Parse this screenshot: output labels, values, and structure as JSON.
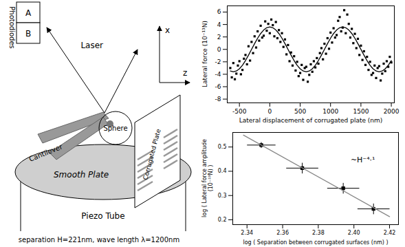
{
  "diagram": {
    "photodiodes": {
      "label": "Photodiodes",
      "cells": [
        "A",
        "B"
      ]
    },
    "labels": {
      "laser": "Laser",
      "x_axis": "x",
      "z_axis": "z",
      "cantilever": "Cantilever",
      "sphere": "Sphere",
      "corrugated_plate": "Corrugated Plate",
      "smooth_plate": "Smooth Plate",
      "piezo_tube": "Piezo Tube"
    },
    "caption": "separation H=221nm, wave length λ=1200nm"
  },
  "chart_data": [
    {
      "type": "scatter",
      "x_label": "Lateral displacement of corrugated plate (nm)",
      "y_label": "Lateral force (10⁻¹³N)",
      "xlim": [
        -700,
        2050
      ],
      "xticks": [
        -500,
        0,
        500,
        1000,
        1500,
        2000
      ],
      "ylim": [
        -8.6,
        7
      ],
      "yticks": [
        -8,
        -6,
        -4,
        -2,
        0,
        2,
        4,
        6
      ],
      "series": [
        {
          "type": "scatter",
          "marker": "square",
          "color": "#000000",
          "x": [
            -650,
            -625,
            -600,
            -575,
            -550,
            -525,
            -500,
            -475,
            -450,
            -425,
            -400,
            -375,
            -350,
            -325,
            -300,
            -275,
            -250,
            -225,
            -200,
            -175,
            -150,
            -125,
            -100,
            -75,
            -50,
            -25,
            0,
            25,
            50,
            75,
            100,
            125,
            150,
            175,
            200,
            225,
            250,
            275,
            300,
            325,
            350,
            375,
            400,
            425,
            450,
            475,
            500,
            525,
            550,
            575,
            600,
            625,
            650,
            675,
            700,
            725,
            750,
            775,
            800,
            825,
            850,
            875,
            900,
            925,
            950,
            975,
            1000,
            1025,
            1050,
            1075,
            1100,
            1125,
            1150,
            1175,
            1200,
            1225,
            1250,
            1275,
            1300,
            1325,
            1350,
            1375,
            1400,
            1425,
            1450,
            1475,
            1500,
            1525,
            1550,
            1575,
            1600,
            1625,
            1650,
            1675,
            1700,
            1725,
            1750,
            1775,
            1800,
            1825,
            1850,
            1875,
            1900,
            1925,
            1950,
            1975,
            2000
          ],
          "values": [
            -3.0,
            -4.5,
            -2.2,
            -4.8,
            -3.9,
            -2.6,
            -1.9,
            -4.0,
            -3.3,
            -1.5,
            -0.9,
            -2.4,
            0.5,
            -1.8,
            1.2,
            -0.6,
            2.1,
            0.3,
            2.9,
            1.4,
            3.8,
            1.9,
            2.2,
            4.5,
            3.0,
            4.1,
            2.6,
            4.8,
            3.9,
            2.1,
            4.4,
            1.8,
            3.1,
            1.2,
            2.6,
            0.4,
            1.6,
            -0.8,
            0.7,
            -1.9,
            -0.5,
            -2.6,
            -1.1,
            -3.4,
            -2.0,
            -4.3,
            -3.8,
            -2.5,
            -4.9,
            -3.0,
            -2.8,
            -5.2,
            -4.1,
            -2.4,
            -3.6,
            -1.9,
            -2.9,
            -1.4,
            -2.3,
            -0.6,
            0.2,
            -1.6,
            0.9,
            -0.7,
            1.8,
            0.1,
            2.7,
            1.1,
            3.4,
            1.9,
            2.3,
            4.6,
            5.2,
            2.9,
            3.5,
            6.3,
            2.6,
            5.6,
            4.1,
            1.9,
            3.3,
            1.0,
            2.5,
            0.2,
            1.7,
            -0.9,
            0.6,
            -1.7,
            -0.3,
            -2.5,
            -1.2,
            -3.3,
            -2.0,
            -4.1,
            -3.8,
            -2.6,
            -4.6,
            -3.0,
            -2.7,
            -5.0,
            -3.9,
            -2.3,
            -3.5,
            -1.9,
            -2.8,
            -1.2,
            -2.1
          ]
        },
        {
          "type": "line",
          "line_style": "solid",
          "color": "#000000",
          "x": [
            -650,
            -600,
            -550,
            -500,
            -450,
            -400,
            -350,
            -300,
            -250,
            -200,
            -150,
            -100,
            -50,
            0,
            50,
            100,
            150,
            200,
            250,
            300,
            350,
            400,
            450,
            500,
            550,
            600,
            650,
            700,
            750,
            800,
            850,
            900,
            950,
            1000,
            1050,
            1100,
            1150,
            1200,
            1250,
            1300,
            1350,
            1400,
            1450,
            1500,
            1550,
            1600,
            1650,
            1700,
            1750,
            1800,
            1850,
            1900,
            1950,
            2000
          ],
          "values": [
            -3.48,
            -3.6,
            -3.48,
            -3.12,
            -2.55,
            -1.8,
            -0.93,
            0,
            0.93,
            1.8,
            2.55,
            3.12,
            3.48,
            3.6,
            3.48,
            3.12,
            2.55,
            1.8,
            0.93,
            0,
            -0.93,
            -1.8,
            -2.55,
            -3.12,
            -3.48,
            -3.6,
            -3.48,
            -3.12,
            -2.55,
            -1.8,
            -0.93,
            0,
            0.93,
            1.8,
            2.55,
            3.12,
            3.48,
            3.6,
            3.48,
            3.12,
            2.55,
            1.8,
            0.93,
            0,
            -0.93,
            -1.8,
            -2.55,
            -3.12,
            -3.48,
            -3.6,
            -3.48,
            -3.12,
            -2.55,
            -1.8
          ]
        }
      ]
    },
    {
      "type": "scatter",
      "x_label": "log ( Separation between corrugated surfaces (nm) )",
      "y_label": "log ( Lateral force amplitude (10⁻¹³N) )",
      "xlim": [
        2.332,
        2.425
      ],
      "xticks": [
        2.34,
        2.36,
        2.38,
        {
          "value": 2.4,
          "label": "2.40"
        },
        2.42
      ],
      "ylim": [
        0.18,
        0.56
      ],
      "yticks": [
        0.2,
        0.3,
        0.4,
        0.5
      ],
      "annotation": "~H⁻⁴·¹",
      "series": [
        {
          "type": "scatter",
          "marker": "square",
          "color": "#000000",
          "x": [
            2.348,
            2.371,
            2.394,
            2.411
          ],
          "values": [
            0.508,
            0.413,
            0.33,
            0.245
          ],
          "x_error": [
            0.008,
            0.009,
            0.009,
            0.009
          ],
          "y_error": [
            0.012,
            0.022,
            0.022,
            0.022
          ]
        },
        {
          "type": "line",
          "line_style": "solid",
          "color": "#888888",
          "x": [
            2.338,
            2.42
          ],
          "values": [
            0.549,
            0.213
          ]
        }
      ]
    }
  ]
}
